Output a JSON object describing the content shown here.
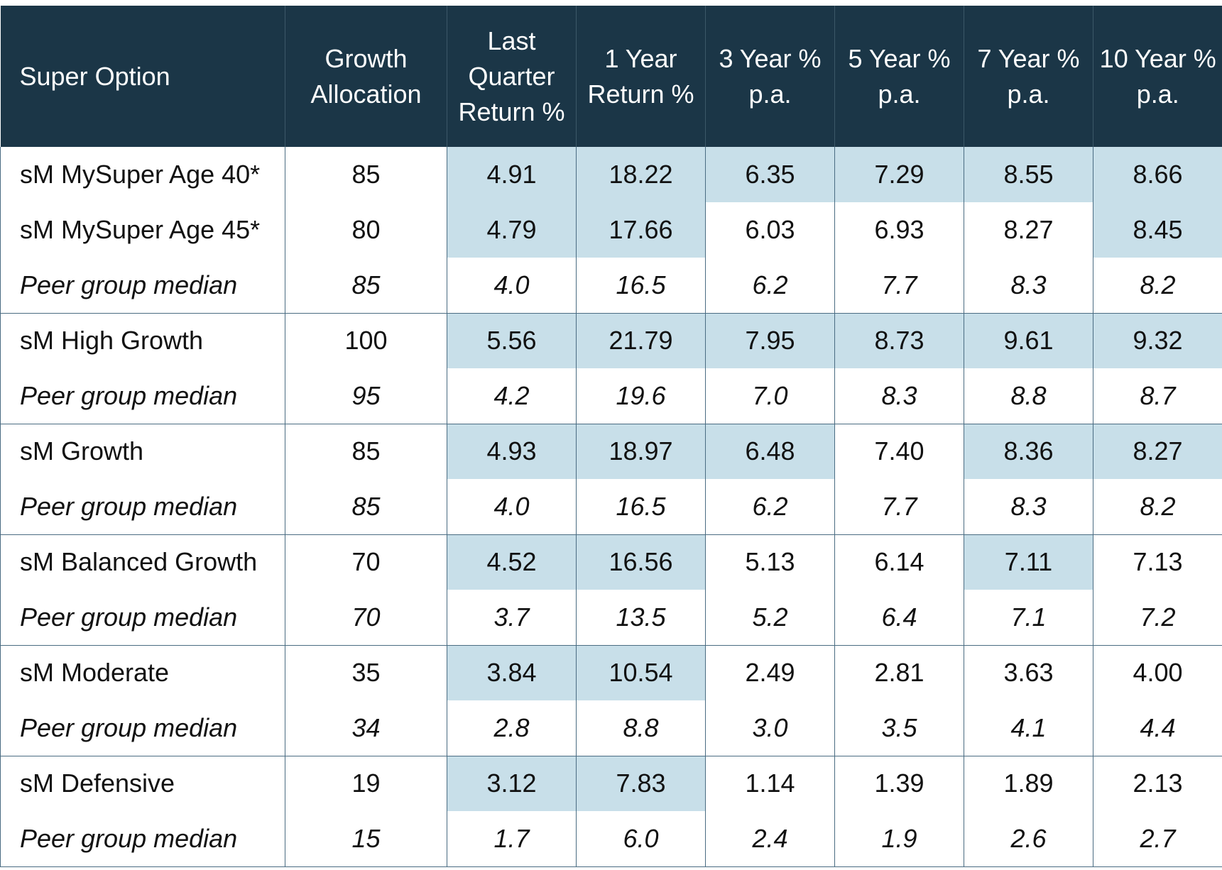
{
  "columns": [
    "Super Option",
    "Growth Allocation",
    "Last Quarter Return %",
    "1 Year Return %",
    "3 Year % p.a.",
    "5 Year % p.a.",
    "7 Year % p.a.",
    "10 Year % p.a."
  ],
  "highlight_color": "#c8dfe9",
  "header_color": "#1b3647",
  "rows": [
    {
      "type": "fund",
      "cells": [
        "sM MySuper Age 40*",
        "85",
        "4.91",
        "18.22",
        "6.35",
        "7.29",
        "8.55",
        "8.66"
      ],
      "highlight": [
        false,
        false,
        true,
        true,
        true,
        true,
        true,
        true
      ]
    },
    {
      "type": "fund",
      "cells": [
        "sM MySuper Age 45*",
        "80",
        "4.79",
        "17.66",
        "6.03",
        "6.93",
        "8.27",
        "8.45"
      ],
      "highlight": [
        false,
        false,
        true,
        true,
        false,
        false,
        false,
        true
      ]
    },
    {
      "type": "peer",
      "cells": [
        "Peer group median",
        "85",
        "4.0",
        "16.5",
        "6.2",
        "7.7",
        "8.3",
        "8.2"
      ],
      "highlight": [
        false,
        false,
        false,
        false,
        false,
        false,
        false,
        false
      ]
    },
    {
      "type": "fund",
      "cells": [
        "sM High Growth",
        "100",
        "5.56",
        "21.79",
        "7.95",
        "8.73",
        "9.61",
        "9.32"
      ],
      "highlight": [
        false,
        false,
        true,
        true,
        true,
        true,
        true,
        true
      ]
    },
    {
      "type": "peer",
      "cells": [
        "Peer group median",
        "95",
        "4.2",
        "19.6",
        "7.0",
        "8.3",
        "8.8",
        "8.7"
      ],
      "highlight": [
        false,
        false,
        false,
        false,
        false,
        false,
        false,
        false
      ]
    },
    {
      "type": "fund",
      "cells": [
        "sM Growth",
        "85",
        "4.93",
        "18.97",
        "6.48",
        "7.40",
        "8.36",
        "8.27"
      ],
      "highlight": [
        false,
        false,
        true,
        true,
        true,
        false,
        true,
        true
      ]
    },
    {
      "type": "peer",
      "cells": [
        "Peer group median",
        "85",
        "4.0",
        "16.5",
        "6.2",
        "7.7",
        "8.3",
        "8.2"
      ],
      "highlight": [
        false,
        false,
        false,
        false,
        false,
        false,
        false,
        false
      ]
    },
    {
      "type": "fund",
      "cells": [
        "sM Balanced Growth",
        "70",
        "4.52",
        "16.56",
        "5.13",
        "6.14",
        "7.11",
        "7.13"
      ],
      "highlight": [
        false,
        false,
        true,
        true,
        false,
        false,
        true,
        false
      ]
    },
    {
      "type": "peer",
      "cells": [
        "Peer group median",
        "70",
        "3.7",
        "13.5",
        "5.2",
        "6.4",
        "7.1",
        "7.2"
      ],
      "highlight": [
        false,
        false,
        false,
        false,
        false,
        false,
        false,
        false
      ]
    },
    {
      "type": "fund",
      "cells": [
        "sM Moderate",
        "35",
        "3.84",
        "10.54",
        "2.49",
        "2.81",
        "3.63",
        "4.00"
      ],
      "highlight": [
        false,
        false,
        true,
        true,
        false,
        false,
        false,
        false
      ]
    },
    {
      "type": "peer",
      "cells": [
        "Peer group median",
        "34",
        "2.8",
        "8.8",
        "3.0",
        "3.5",
        "4.1",
        "4.4"
      ],
      "highlight": [
        false,
        false,
        false,
        false,
        false,
        false,
        false,
        false
      ]
    },
    {
      "type": "fund",
      "cells": [
        "sM Defensive",
        "19",
        "3.12",
        "7.83",
        "1.14",
        "1.39",
        "1.89",
        "2.13"
      ],
      "highlight": [
        false,
        false,
        true,
        true,
        false,
        false,
        false,
        false
      ]
    },
    {
      "type": "peer",
      "cells": [
        "Peer group median",
        "15",
        "1.7",
        "6.0",
        "2.4",
        "1.9",
        "2.6",
        "2.7"
      ],
      "highlight": [
        false,
        false,
        false,
        false,
        false,
        false,
        false,
        false
      ]
    }
  ]
}
